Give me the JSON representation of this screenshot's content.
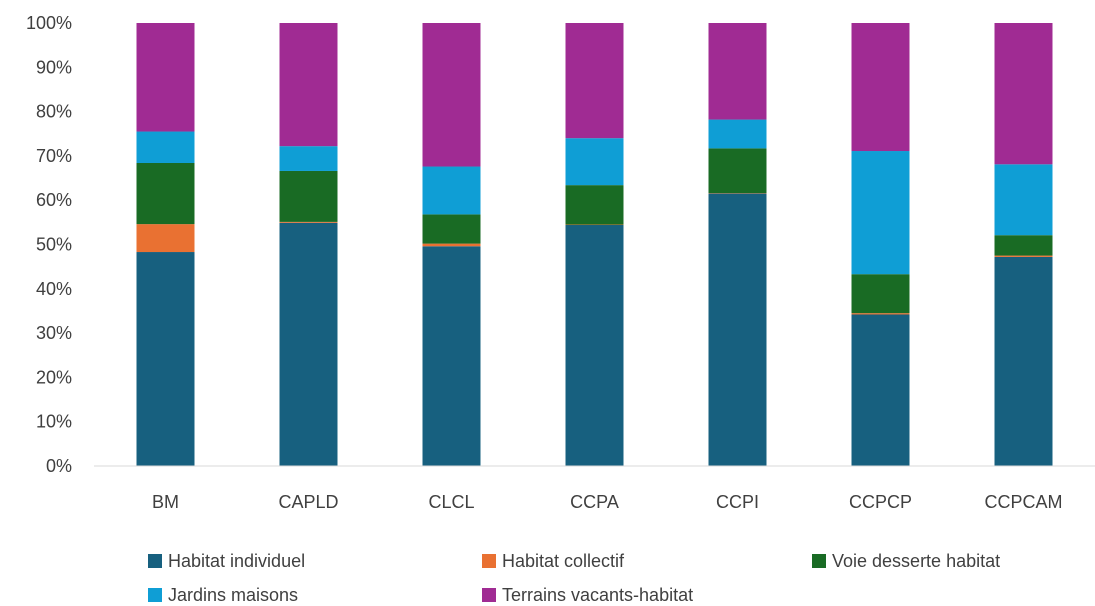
{
  "chart_data": {
    "type": "bar",
    "stacked": true,
    "categories": [
      "BM",
      "CAPLD",
      "CLCL",
      "CCPA",
      "CCPI",
      "CCPCP",
      "CCPCAM"
    ],
    "series": [
      {
        "name": "Habitat individuel",
        "color": "#17607F",
        "values": [
          48.3,
          54.9,
          49.6,
          54.4,
          61.5,
          34.2,
          47.2
        ]
      },
      {
        "name": "Habitat collectif",
        "color": "#E97132",
        "values": [
          6.3,
          0.2,
          0.6,
          0.1,
          0.1,
          0.3,
          0.3
        ]
      },
      {
        "name": "Voie desserte habitat",
        "color": "#196B24",
        "values": [
          13.8,
          11.5,
          6.6,
          8.9,
          10.1,
          8.8,
          4.6
        ]
      },
      {
        "name": "Jardins maisons",
        "color": "#0F9ED5",
        "values": [
          7.1,
          5.6,
          10.8,
          10.6,
          6.5,
          27.8,
          16.0
        ]
      },
      {
        "name": "Terrains vacants-habitat",
        "color": "#A02B93",
        "values": [
          24.5,
          27.8,
          32.4,
          26.0,
          21.8,
          28.9,
          31.9
        ]
      }
    ],
    "yticks": [
      "0%",
      "10%",
      "20%",
      "30%",
      "40%",
      "50%",
      "60%",
      "70%",
      "80%",
      "90%",
      "100%"
    ],
    "ylim": [
      0,
      100
    ],
    "grid": false,
    "legend_position": "bottom"
  }
}
